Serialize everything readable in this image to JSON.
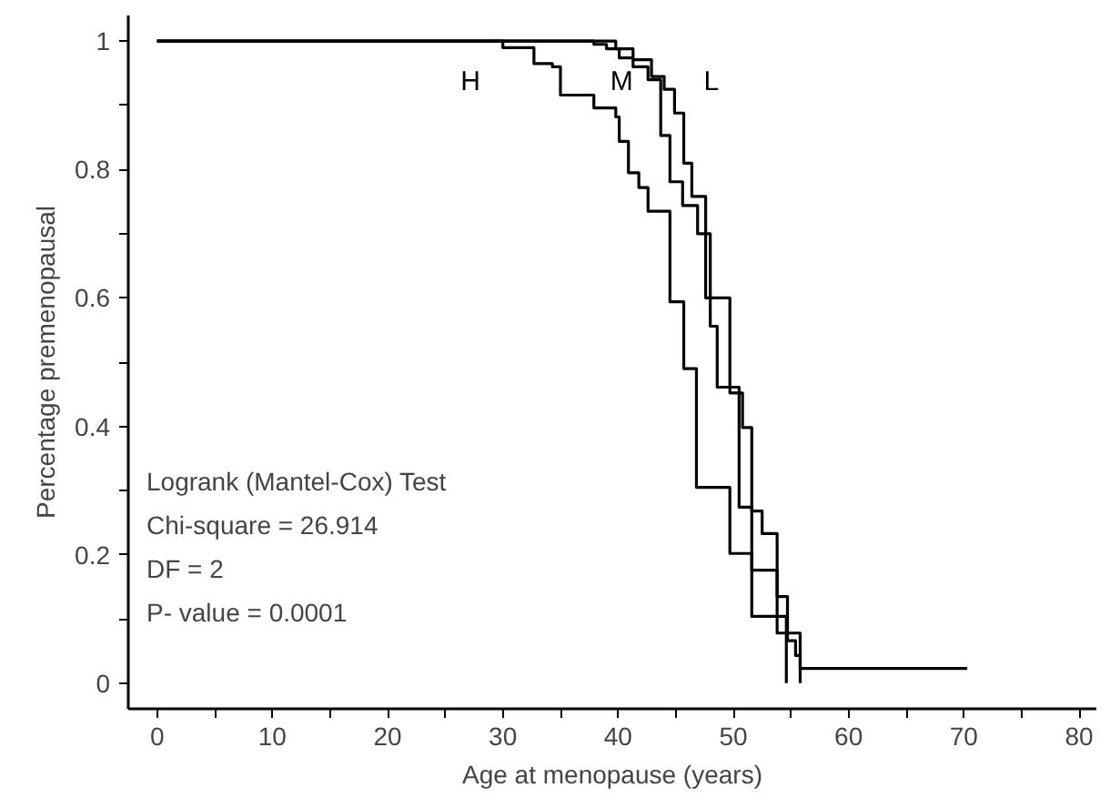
{
  "chart_data": {
    "type": "step",
    "xlabel": "Age at menopause (years)",
    "ylabel": "Percentage premenopausal",
    "xlim": [
      -2.5,
      81.5
    ],
    "ylim": [
      -0.04,
      1.04
    ],
    "xticks": [
      0,
      {
        "value": 5,
        "label": null
      },
      10,
      {
        "value": 15,
        "label": null
      },
      20,
      {
        "value": 25,
        "label": null
      },
      30,
      {
        "value": 35,
        "label": null
      },
      40,
      {
        "value": 45,
        "label": null
      },
      50,
      {
        "value": 55,
        "label": null
      },
      60,
      {
        "value": 65,
        "label": null
      },
      70,
      {
        "value": 75,
        "label": null
      },
      80
    ],
    "yticks": [
      0,
      {
        "value": 0.1,
        "label": null
      },
      0.2,
      {
        "value": 0.3,
        "label": null
      },
      0.4,
      {
        "value": 0.5,
        "label": null
      },
      0.6,
      {
        "value": 0.7,
        "label": null
      },
      0.8,
      {
        "value": 0.9,
        "label": null
      },
      1
    ],
    "grid": false,
    "line_style": "solid",
    "series": [
      {
        "name": "H",
        "color": "#000000",
        "x": [
          0,
          30,
          32.7,
          34.3,
          35.0,
          37.9,
          39.8,
          40.1,
          40.9,
          41.8,
          42.6,
          44.5,
          45.7,
          46.8,
          49.7,
          51.6,
          54.6
        ],
        "values": [
          1,
          0.99,
          0.965,
          0.96,
          0.916,
          0.896,
          0.882,
          0.844,
          0.795,
          0.772,
          0.735,
          0.594,
          0.49,
          0.305,
          0.202,
          0.104,
          0
        ]
      },
      {
        "name": "M",
        "color": "#000000",
        "x": [
          0,
          37.9,
          39.0,
          40.1,
          41.3,
          42.6,
          43.7,
          44.5,
          45.6,
          46.9,
          48.0,
          48.6,
          50.5,
          51.6,
          53.8,
          55.8
        ],
        "values": [
          1,
          0.995,
          0.988,
          0.974,
          0.96,
          0.94,
          0.853,
          0.781,
          0.744,
          0.7,
          0.556,
          0.461,
          0.274,
          0.176,
          0.078,
          0
        ]
      },
      {
        "name": "L",
        "color": "#000000",
        "x": [
          0,
          39.8,
          41.3,
          42.9,
          44.0,
          44.9,
          45.7,
          46.4,
          47.6,
          49.7,
          50.8,
          51.6,
          52.5,
          53.8,
          54.7,
          55.4,
          55.8,
          70.3
        ],
        "values": [
          1,
          0.988,
          0.971,
          0.945,
          0.925,
          0.888,
          0.81,
          0.758,
          0.6,
          0.452,
          0.398,
          0.268,
          0.233,
          0.135,
          0.066,
          0.043,
          0.023,
          0.023
        ]
      }
    ],
    "annotations": [
      "Logrank (Mantel-Cox) Test",
      "Chi-square = 26.914",
      "DF = 2",
      "P- value = 0.0001"
    ]
  }
}
